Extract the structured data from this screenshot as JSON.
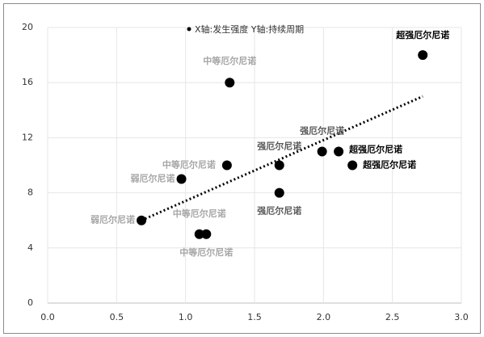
{
  "chart_data": {
    "type": "scatter",
    "xlim": [
      0,
      3
    ],
    "xticks": [
      {
        "value": 0,
        "label": "0.0"
      },
      0.5,
      {
        "value": 1,
        "label": "1.0"
      },
      1.5,
      {
        "value": 2,
        "label": "2.0"
      },
      2.5,
      {
        "value": 3,
        "label": "3.0"
      }
    ],
    "ylim": [
      0,
      20
    ],
    "yticks": [
      0,
      4,
      8,
      12,
      16,
      20
    ],
    "grid": true,
    "series": [
      {
        "name": "X轴:发生强度 Y轴:持续周期",
        "color": "#000000",
        "x": [
          0.68,
          0.97,
          1.1,
          1.15,
          1.3,
          1.32,
          1.68,
          1.68,
          1.99,
          2.11,
          2.21,
          2.72
        ],
        "values": [
          6,
          9,
          5,
          5,
          10,
          16,
          8,
          10,
          11,
          11,
          10,
          18
        ],
        "value_labels": [
          "弱厄尔尼诺",
          "弱厄尔尼诺",
          "中等厄尔尼诺",
          "中等厄尔尼诺",
          "中等厄尔尼诺",
          "中等厄尔尼诺",
          "强厄尔尼诺",
          "强厄尔尼诺",
          "强厄尔尼诺",
          "超强厄尔尼诺",
          "超强厄尔尼诺",
          "超强厄尔尼诺"
        ],
        "label_colors": [
          "#a6a6a6",
          "#a6a6a6",
          "#a6a6a6",
          "#a6a6a6",
          "#a6a6a6",
          "#a6a6a6",
          "#595959",
          "#595959",
          "#595959",
          "#000000",
          "#000000",
          "#000000"
        ]
      }
    ],
    "trendline": {
      "x": [
        0.68,
        2.72
      ],
      "y": [
        6,
        15
      ],
      "color": "#000000"
    }
  }
}
